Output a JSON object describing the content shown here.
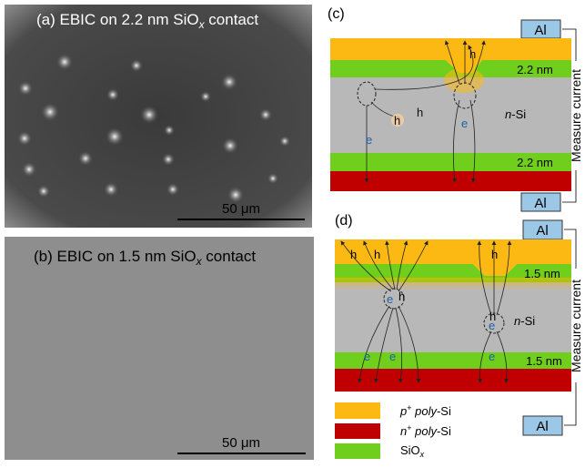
{
  "panel_a": {
    "label_parts": [
      "(a) EBIC on 2.2 nm SiO",
      "x",
      " contact"
    ],
    "scale_bar": "50 μm"
  },
  "panel_b": {
    "label_parts": [
      "(b) EBIC on 1.5 nm SiO",
      "x",
      " contact"
    ],
    "scale_bar": "50 μm"
  },
  "panel_c": {
    "label": "(c)",
    "al_top": "Al",
    "al_bottom": "Al",
    "oxide_top": "2.2 nm",
    "oxide_bottom": "2.2 nm",
    "bulk_parts": [
      "n",
      "-Si"
    ],
    "holes": [
      "h",
      "h",
      "h"
    ],
    "electrons": [
      "e",
      "e"
    ],
    "measure": "Measure current"
  },
  "panel_d": {
    "label": "(d)",
    "al_top": "Al",
    "al_bottom": "Al",
    "oxide_top": "1.5 nm",
    "oxide_bottom": "1.5 nm",
    "bulk_parts": [
      "n",
      "-Si"
    ],
    "holes": [
      "h",
      "h",
      "h",
      "h",
      "h"
    ],
    "electrons": [
      "e",
      "e",
      "e",
      "e",
      "e"
    ],
    "measure": "Measure current"
  },
  "legend": [
    {
      "parts": [
        "p",
        "+",
        " poly",
        "-Si"
      ]
    },
    {
      "parts": [
        "n",
        "+",
        " poly",
        "-Si"
      ]
    },
    {
      "parts": [
        "SiO",
        "x"
      ]
    }
  ]
}
